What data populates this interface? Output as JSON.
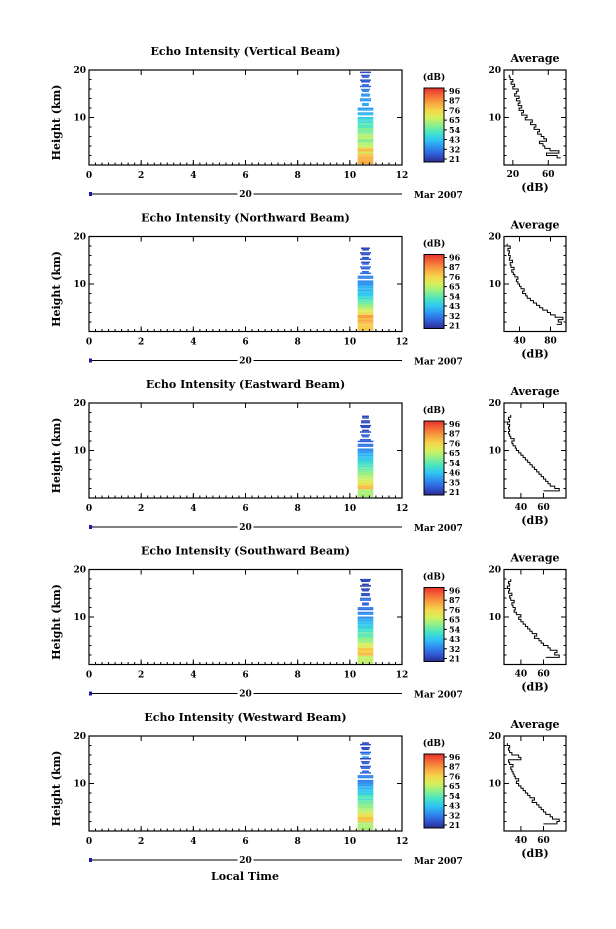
{
  "chart_data": {
    "type": "heatmap",
    "x_axis_label": "Local Time",
    "y_axis_label": "Height (km)",
    "x_ticks": [
      "0",
      "2",
      "4",
      "6",
      "8",
      "10",
      "12"
    ],
    "xlim": [
      0,
      12
    ],
    "ylim": [
      0,
      20
    ],
    "y_ticks": [
      "10",
      "20"
    ],
    "date_day": "20",
    "date_month_year": "Mar 2007",
    "colorbar_unit": "(dB)",
    "colorbar_stops": [
      "#2b2b8f",
      "#2f5bd7",
      "#2f8ff0",
      "#2fc6f2",
      "#49e4c2",
      "#8ff08a",
      "#d6f05c",
      "#f6d54a",
      "#f7a340",
      "#f46a36",
      "#e8302c"
    ],
    "avg_title": "Average",
    "avg_xlabel": "(dB)",
    "avg_ylim": [
      0,
      20
    ],
    "panels": [
      {
        "title": "Echo Intensity (Vertical Beam)",
        "colorbar_ticks": [
          "96",
          "87",
          "76",
          "65",
          "54",
          "43",
          "32",
          "21"
        ],
        "avg_xticks": [
          {
            "v": 20,
            "label": "20"
          },
          {
            "v": 60,
            "label": "60"
          }
        ],
        "avg_xlim": [
          10,
          80
        ],
        "avg_height": [
          1.5,
          2,
          2.5,
          3,
          3.5,
          4,
          4.5,
          5,
          5.5,
          6,
          6.5,
          7,
          7.5,
          8,
          8.5,
          9,
          9.5,
          10,
          10.5,
          11,
          11.5,
          12,
          12.5,
          13,
          13.5,
          14,
          14.5,
          15,
          15.5,
          16,
          16.5,
          17,
          17.5,
          18,
          18.5,
          19
        ],
        "avg_db": [
          74,
          70,
          58,
          72,
          62,
          56,
          54,
          50,
          58,
          55,
          52,
          48,
          50,
          44,
          46,
          40,
          42,
          34,
          36,
          30,
          32,
          27,
          30,
          26,
          28,
          24,
          27,
          22,
          24,
          26,
          20,
          22,
          18,
          20,
          17,
          16
        ],
        "echo_top_km": 19.5
      },
      {
        "title": "Echo Intensity (Northward Beam)",
        "colorbar_ticks": [
          "96",
          "87",
          "76",
          "65",
          "54",
          "43",
          "32",
          "21"
        ],
        "avg_xticks": [
          {
            "v": 40,
            "label": "40"
          },
          {
            "v": 80,
            "label": "80"
          }
        ],
        "avg_xlim": [
          20,
          100
        ],
        "avg_height": [
          1.5,
          2,
          2.5,
          3,
          3.5,
          4,
          4.5,
          5,
          5.5,
          6,
          6.5,
          7,
          7.5,
          8,
          8.5,
          9,
          9.5,
          10,
          10.5,
          11,
          11.5,
          12,
          12.5,
          13,
          13.5,
          14,
          14.5,
          15,
          15.5,
          16,
          16.5,
          17,
          17.5,
          18,
          18.5
        ],
        "avg_db": [
          88,
          94,
          90,
          96,
          86,
          80,
          76,
          70,
          66,
          62,
          58,
          54,
          50,
          48,
          44,
          46,
          42,
          40,
          38,
          36,
          38,
          34,
          32,
          30,
          33,
          29,
          28,
          31,
          27,
          28,
          26,
          27,
          25,
          28,
          24
        ],
        "echo_top_km": 18
      },
      {
        "title": "Echo Intensity (Eastward Beam)",
        "colorbar_ticks": [
          "96",
          "87",
          "76",
          "65",
          "54",
          "46",
          "35",
          "21"
        ],
        "avg_xticks": [
          {
            "v": 40,
            "label": "40"
          },
          {
            "v": 60,
            "label": "60"
          }
        ],
        "avg_xlim": [
          25,
          80
        ],
        "avg_height": [
          1.5,
          2,
          2.5,
          3,
          3.5,
          4,
          4.5,
          5,
          5.5,
          6,
          6.5,
          7,
          7.5,
          8,
          8.5,
          9,
          9.5,
          10,
          10.5,
          11,
          11.5,
          12,
          12.5,
          13,
          13.5,
          14,
          14.5,
          15,
          15.5,
          16,
          16.5,
          17,
          17.5
        ],
        "avg_db": [
          60,
          74,
          70,
          66,
          64,
          62,
          60,
          58,
          56,
          54,
          52,
          50,
          48,
          46,
          44,
          42,
          40,
          38,
          36,
          35,
          33,
          32,
          34,
          31,
          30,
          29,
          30,
          29,
          30,
          28,
          30,
          29,
          31
        ],
        "echo_top_km": 17.5
      },
      {
        "title": "Echo Intensity (Southward Beam)",
        "colorbar_ticks": [
          "96",
          "87",
          "76",
          "65",
          "54",
          "43",
          "32",
          "21"
        ],
        "avg_xticks": [
          {
            "v": 40,
            "label": "40"
          },
          {
            "v": 60,
            "label": "60"
          }
        ],
        "avg_xlim": [
          25,
          80
        ],
        "avg_height": [
          1.5,
          2,
          2.5,
          3,
          3.5,
          4,
          4.5,
          5,
          5.5,
          6,
          6.5,
          7,
          7.5,
          8,
          8.5,
          9,
          9.5,
          10,
          10.5,
          11,
          11.5,
          12,
          12.5,
          13,
          13.5,
          14,
          14.5,
          15,
          15.5,
          16,
          16.5,
          17,
          17.5,
          18
        ],
        "avg_db": [
          62,
          74,
          70,
          72,
          66,
          64,
          60,
          58,
          56,
          52,
          54,
          50,
          48,
          46,
          44,
          42,
          40,
          38,
          40,
          36,
          34,
          35,
          33,
          32,
          34,
          31,
          30,
          32,
          29,
          30,
          28,
          30,
          29,
          31
        ],
        "echo_top_km": 18
      },
      {
        "title": "Echo Intensity (Westward Beam)",
        "colorbar_ticks": [
          "96",
          "87",
          "76",
          "65",
          "54",
          "43",
          "32",
          "21"
        ],
        "avg_xticks": [
          {
            "v": 40,
            "label": "40"
          },
          {
            "v": 60,
            "label": "60"
          }
        ],
        "avg_xlim": [
          25,
          80
        ],
        "avg_height": [
          1.5,
          2,
          2.5,
          3,
          3.5,
          4,
          4.5,
          5,
          5.5,
          6,
          6.5,
          7,
          7.5,
          8,
          8.5,
          9,
          9.5,
          10,
          10.5,
          11,
          11.5,
          12,
          12.5,
          13,
          13.5,
          14,
          14.5,
          15,
          15.5,
          16,
          16.5,
          17,
          17.5,
          18,
          18.5
        ],
        "avg_db": [
          60,
          72,
          74,
          68,
          66,
          62,
          60,
          58,
          56,
          54,
          50,
          52,
          48,
          46,
          44,
          42,
          40,
          38,
          36,
          38,
          35,
          34,
          33,
          32,
          31,
          33,
          30,
          29,
          40,
          38,
          32,
          30,
          29,
          30,
          28
        ],
        "echo_top_km": 18.5
      }
    ]
  }
}
